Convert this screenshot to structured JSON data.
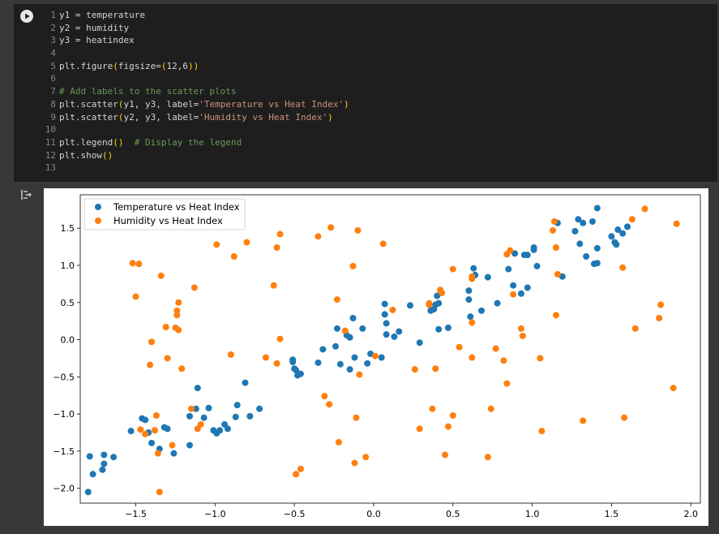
{
  "code_cell": {
    "lines": [
      {
        "n": "1",
        "segments": [
          {
            "t": "y1 = temperature",
            "c": "plain"
          }
        ]
      },
      {
        "n": "2",
        "segments": [
          {
            "t": "y2 = humidity",
            "c": "plain"
          }
        ]
      },
      {
        "n": "3",
        "segments": [
          {
            "t": "y3 = heatindex",
            "c": "plain"
          }
        ]
      },
      {
        "n": "4",
        "segments": []
      },
      {
        "n": "5",
        "segments": [
          {
            "t": "plt.figure",
            "c": "plain"
          },
          {
            "t": "(",
            "c": "br"
          },
          {
            "t": "figsize=",
            "c": "plain"
          },
          {
            "t": "(",
            "c": "br"
          },
          {
            "t": "12,6",
            "c": "plain"
          },
          {
            "t": "))",
            "c": "br"
          }
        ]
      },
      {
        "n": "6",
        "segments": []
      },
      {
        "n": "7",
        "segments": [
          {
            "t": "# Add labels to the scatter plots",
            "c": "com"
          }
        ]
      },
      {
        "n": "8",
        "segments": [
          {
            "t": "plt.scatter",
            "c": "plain"
          },
          {
            "t": "(",
            "c": "br"
          },
          {
            "t": "y1, y3, label=",
            "c": "plain"
          },
          {
            "t": "'Temperature vs Heat Index'",
            "c": "str"
          },
          {
            "t": ")",
            "c": "br"
          }
        ]
      },
      {
        "n": "9",
        "segments": [
          {
            "t": "plt.scatter",
            "c": "plain"
          },
          {
            "t": "(",
            "c": "br"
          },
          {
            "t": "y2, y3, label=",
            "c": "plain"
          },
          {
            "t": "'Humidity vs Heat Index'",
            "c": "str"
          },
          {
            "t": ")",
            "c": "br"
          }
        ]
      },
      {
        "n": "10",
        "segments": []
      },
      {
        "n": "11",
        "segments": [
          {
            "t": "plt.legend",
            "c": "plain"
          },
          {
            "t": "()",
            "c": "br"
          },
          {
            "t": "  ",
            "c": "plain"
          },
          {
            "t": "# Display the legend",
            "c": "com"
          }
        ]
      },
      {
        "n": "12",
        "segments": [
          {
            "t": "plt.show",
            "c": "plain"
          },
          {
            "t": "()",
            "c": "br"
          }
        ]
      },
      {
        "n": "13",
        "segments": []
      }
    ]
  },
  "icons": {
    "run": "play-icon",
    "output_toggle": "output-toggle-icon"
  },
  "colors": {
    "series_1": "#1f77b4",
    "series_2": "#ff7f0e"
  },
  "chart_data": {
    "type": "scatter",
    "title": "",
    "xlabel": "",
    "ylabel": "",
    "xlim": [
      -1.85,
      2.06
    ],
    "ylim": [
      -2.2,
      1.95
    ],
    "xticks": [
      -1.5,
      -1.0,
      -0.5,
      0.0,
      0.5,
      1.0,
      1.5,
      2.0
    ],
    "xtick_labels": [
      "−1.5",
      "−1.0",
      "−0.5",
      "0.0",
      "0.5",
      "1.0",
      "1.5",
      "2.0"
    ],
    "yticks": [
      -2.0,
      -1.5,
      -1.0,
      -0.5,
      0.0,
      0.5,
      1.0,
      1.5
    ],
    "ytick_labels": [
      "−2.0",
      "−1.5",
      "−1.0",
      "−0.5",
      "0.0",
      "0.5",
      "1.0",
      "1.5"
    ],
    "grid": false,
    "legend_position": "top-left",
    "series": [
      {
        "name": "Temperature vs Heat Index",
        "color": "#1f77b4",
        "points": [
          [
            -1.8,
            -2.05
          ],
          [
            -1.79,
            -1.57
          ],
          [
            -1.77,
            -1.81
          ],
          [
            -1.71,
            -1.75
          ],
          [
            -1.7,
            -1.67
          ],
          [
            -1.7,
            -1.55
          ],
          [
            -1.64,
            -1.58
          ],
          [
            -1.53,
            -1.23
          ],
          [
            -1.46,
            -1.06
          ],
          [
            -1.44,
            -1.08
          ],
          [
            -1.42,
            -1.25
          ],
          [
            -1.4,
            -1.39
          ],
          [
            -1.35,
            -1.47
          ],
          [
            -1.32,
            -1.18
          ],
          [
            -1.3,
            -1.2
          ],
          [
            -1.26,
            -1.53
          ],
          [
            -1.16,
            -1.42
          ],
          [
            -1.16,
            -1.03
          ],
          [
            -1.12,
            -0.93
          ],
          [
            -1.11,
            -0.65
          ],
          [
            -1.07,
            -1.05
          ],
          [
            -1.04,
            -0.92
          ],
          [
            -1.01,
            -1.22
          ],
          [
            -0.99,
            -1.26
          ],
          [
            -0.97,
            -1.22
          ],
          [
            -0.94,
            -1.14
          ],
          [
            -0.92,
            -1.2
          ],
          [
            -0.87,
            -1.04
          ],
          [
            -0.86,
            -0.88
          ],
          [
            -0.81,
            -0.58
          ],
          [
            -0.78,
            -1.03
          ],
          [
            -0.72,
            -0.93
          ],
          [
            -0.51,
            -0.27
          ],
          [
            -0.51,
            -0.3
          ],
          [
            -0.5,
            -0.39
          ],
          [
            -0.49,
            -0.41
          ],
          [
            -0.48,
            -0.48
          ],
          [
            -0.46,
            -0.46
          ],
          [
            -0.35,
            -0.31
          ],
          [
            -0.32,
            -0.13
          ],
          [
            -0.24,
            -0.09
          ],
          [
            -0.23,
            0.15
          ],
          [
            -0.21,
            -0.33
          ],
          [
            -0.17,
            0.06
          ],
          [
            -0.15,
            -0.4
          ],
          [
            -0.15,
            0.03
          ],
          [
            -0.13,
            0.29
          ],
          [
            -0.12,
            -0.24
          ],
          [
            -0.07,
            0.15
          ],
          [
            -0.04,
            -0.32
          ],
          [
            -0.02,
            -0.19
          ],
          [
            0.05,
            -0.24
          ],
          [
            0.07,
            0.48
          ],
          [
            0.07,
            0.34
          ],
          [
            0.08,
            0.22
          ],
          [
            0.08,
            0.07
          ],
          [
            0.13,
            0.04
          ],
          [
            0.16,
            0.11
          ],
          [
            0.23,
            0.46
          ],
          [
            0.29,
            -0.04
          ],
          [
            0.36,
            0.39
          ],
          [
            0.38,
            0.41
          ],
          [
            0.39,
            0.47
          ],
          [
            0.4,
            0.59
          ],
          [
            0.41,
            0.14
          ],
          [
            0.41,
            0.49
          ],
          [
            0.47,
            0.16
          ],
          [
            0.6,
            0.66
          ],
          [
            0.6,
            0.54
          ],
          [
            0.61,
            0.31
          ],
          [
            0.63,
            0.96
          ],
          [
            0.64,
            0.87
          ],
          [
            0.68,
            0.39
          ],
          [
            0.72,
            0.84
          ],
          [
            0.78,
            0.49
          ],
          [
            0.85,
            0.95
          ],
          [
            0.88,
            0.73
          ],
          [
            0.89,
            1.16
          ],
          [
            0.93,
            0.62
          ],
          [
            0.95,
            1.14
          ],
          [
            0.97,
            0.7
          ],
          [
            0.97,
            1.14
          ],
          [
            1.01,
            1.24
          ],
          [
            1.01,
            1.21
          ],
          [
            1.03,
            0.99
          ],
          [
            1.16,
            1.57
          ],
          [
            1.19,
            0.85
          ],
          [
            1.27,
            1.46
          ],
          [
            1.29,
            1.62
          ],
          [
            1.3,
            1.29
          ],
          [
            1.32,
            1.57
          ],
          [
            1.34,
            1.12
          ],
          [
            1.38,
            1.59
          ],
          [
            1.39,
            1.02
          ],
          [
            1.41,
            1.03
          ],
          [
            1.41,
            1.77
          ],
          [
            1.41,
            1.23
          ],
          [
            1.5,
            1.39
          ],
          [
            1.52,
            1.31
          ],
          [
            1.53,
            1.28
          ],
          [
            1.54,
            1.48
          ],
          [
            1.57,
            1.43
          ],
          [
            1.6,
            1.52
          ]
        ]
      },
      {
        "name": "Humidity vs Heat Index",
        "color": "#ff7f0e",
        "points": [
          [
            -1.52,
            1.03
          ],
          [
            -1.5,
            0.58
          ],
          [
            -1.48,
            1.02
          ],
          [
            -1.47,
            -1.21
          ],
          [
            -1.44,
            -1.27
          ],
          [
            -1.41,
            -0.34
          ],
          [
            -1.4,
            -0.03
          ],
          [
            -1.38,
            -1.22
          ],
          [
            -1.37,
            -1.02
          ],
          [
            -1.36,
            -1.53
          ],
          [
            -1.35,
            -2.05
          ],
          [
            -1.34,
            0.86
          ],
          [
            -1.31,
            0.17
          ],
          [
            -1.3,
            -0.25
          ],
          [
            -1.27,
            -1.42
          ],
          [
            -1.25,
            0.16
          ],
          [
            -1.24,
            0.39
          ],
          [
            -1.24,
            0.33
          ],
          [
            -1.23,
            0.5
          ],
          [
            -1.23,
            0.13
          ],
          [
            -1.21,
            -0.39
          ],
          [
            -1.15,
            -0.93
          ],
          [
            -1.13,
            0.7
          ],
          [
            -1.11,
            -1.2
          ],
          [
            -1.09,
            -1.14
          ],
          [
            -0.99,
            1.28
          ],
          [
            -0.9,
            -0.2
          ],
          [
            -0.88,
            1.12
          ],
          [
            -0.8,
            1.31
          ],
          [
            -0.68,
            -0.24
          ],
          [
            -0.63,
            0.73
          ],
          [
            -0.61,
            1.24
          ],
          [
            -0.61,
            -0.32
          ],
          [
            -0.59,
            0.01
          ],
          [
            -0.59,
            1.42
          ],
          [
            -0.49,
            -1.81
          ],
          [
            -0.46,
            -1.74
          ],
          [
            -0.35,
            1.39
          ],
          [
            -0.31,
            -0.76
          ],
          [
            -0.28,
            -0.87
          ],
          [
            -0.27,
            1.51
          ],
          [
            -0.23,
            0.54
          ],
          [
            -0.22,
            -1.38
          ],
          [
            -0.18,
            0.12
          ],
          [
            -0.13,
            0.99
          ],
          [
            -0.12,
            -1.66
          ],
          [
            -0.11,
            -1.05
          ],
          [
            -0.1,
            1.47
          ],
          [
            -0.09,
            -0.47
          ],
          [
            -0.05,
            -1.58
          ],
          [
            0.01,
            -0.22
          ],
          [
            0.06,
            1.29
          ],
          [
            0.12,
            0.4
          ],
          [
            0.26,
            -0.4
          ],
          [
            0.29,
            -1.2
          ],
          [
            0.35,
            0.47
          ],
          [
            0.35,
            0.49
          ],
          [
            0.37,
            -0.93
          ],
          [
            0.39,
            -0.39
          ],
          [
            0.42,
            0.67
          ],
          [
            0.43,
            0.63
          ],
          [
            0.45,
            -1.55
          ],
          [
            0.47,
            -1.17
          ],
          [
            0.5,
            0.95
          ],
          [
            0.5,
            -1.02
          ],
          [
            0.54,
            -0.1
          ],
          [
            0.62,
            -0.24
          ],
          [
            0.62,
            0.23
          ],
          [
            0.62,
            0.85
          ],
          [
            0.62,
            0.82
          ],
          [
            0.72,
            -1.58
          ],
          [
            0.74,
            -0.93
          ],
          [
            0.77,
            -0.12
          ],
          [
            0.82,
            -0.28
          ],
          [
            0.84,
            1.15
          ],
          [
            0.84,
            -0.59
          ],
          [
            0.86,
            1.2
          ],
          [
            0.88,
            0.61
          ],
          [
            0.93,
            0.15
          ],
          [
            0.94,
            0.05
          ],
          [
            1.05,
            -0.25
          ],
          [
            1.06,
            -1.23
          ],
          [
            1.13,
            1.47
          ],
          [
            1.14,
            1.59
          ],
          [
            1.15,
            1.24
          ],
          [
            1.15,
            0.33
          ],
          [
            1.16,
            0.88
          ],
          [
            1.32,
            -1.09
          ],
          [
            1.57,
            0.97
          ],
          [
            1.58,
            -1.05
          ],
          [
            1.63,
            1.62
          ],
          [
            1.65,
            0.15
          ],
          [
            1.71,
            1.76
          ],
          [
            1.8,
            0.29
          ],
          [
            1.81,
            0.47
          ],
          [
            1.89,
            -0.65
          ],
          [
            1.91,
            1.56
          ]
        ]
      }
    ]
  }
}
